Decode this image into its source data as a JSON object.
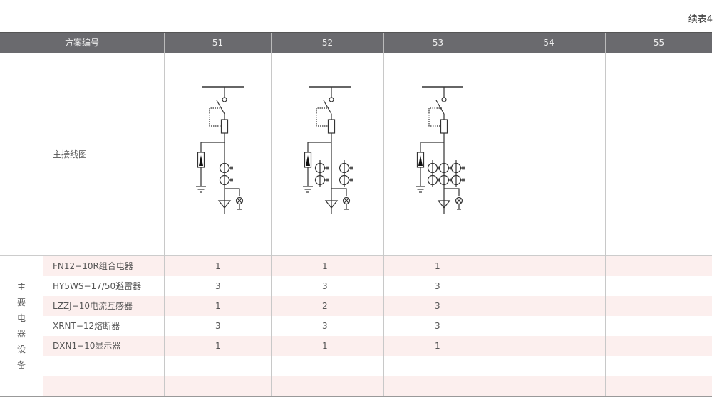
{
  "continued_label": "续表4",
  "header": {
    "label": "方案编号",
    "schemes": [
      "51",
      "52",
      "53",
      "54",
      "55"
    ]
  },
  "diagram_row": {
    "label": "主接线图",
    "ct_sets_per_scheme": [
      1,
      2,
      3,
      0,
      0
    ]
  },
  "equipment_group_label": "主要电器设备",
  "equipment": [
    {
      "name": "FN12−10R组合电器",
      "qty": [
        "1",
        "1",
        "1",
        "",
        ""
      ]
    },
    {
      "name": "HY5WS−17/50避雷器",
      "qty": [
        "3",
        "3",
        "3",
        "",
        ""
      ]
    },
    {
      "name": "LZZJ−10电流互感器",
      "qty": [
        "1",
        "2",
        "3",
        "",
        ""
      ]
    },
    {
      "name": "XRNT−12熔断器",
      "qty": [
        "3",
        "3",
        "3",
        "",
        ""
      ]
    },
    {
      "name": "DXN1−10显示器",
      "qty": [
        "1",
        "1",
        "1",
        "",
        ""
      ]
    },
    {
      "name": "",
      "qty": [
        "",
        "",
        "",
        "",
        ""
      ]
    },
    {
      "name": "",
      "qty": [
        "",
        "",
        "",
        "",
        ""
      ]
    }
  ],
  "colors": {
    "header_bg": "#6a6a6e",
    "stripe": "#fcefee"
  }
}
